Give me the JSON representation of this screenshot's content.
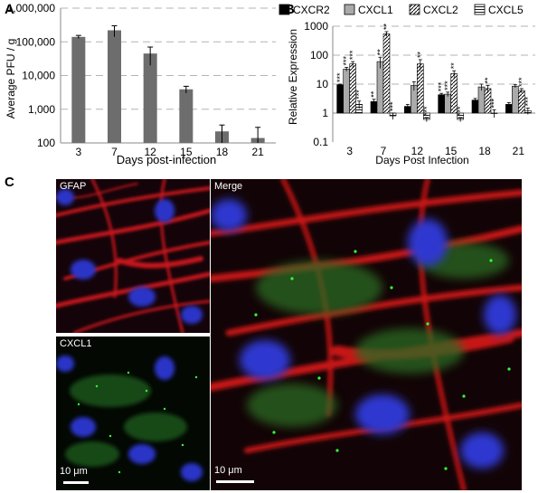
{
  "panels": {
    "a": {
      "letter": "A"
    },
    "b": {
      "letter": "B"
    },
    "c": {
      "letter": "C"
    }
  },
  "chart_data": [
    {
      "type": "bar",
      "panel": "A",
      "categories": [
        "3",
        "7",
        "12",
        "15",
        "18",
        "21"
      ],
      "values": [
        140000,
        220000,
        45000,
        3900,
        220,
        140
      ],
      "errors": [
        15000,
        80000,
        25000,
        900,
        120,
        150
      ],
      "xlabel": "Days post-infection",
      "ylabel": "Average PFU / g",
      "yscale": "log",
      "ylim": [
        100,
        1000000
      ],
      "yticks": [
        "100",
        "1,000",
        "10,000",
        "100,000",
        "1,000,000"
      ],
      "grid": "dashed horizontal",
      "bar_color": "#6d6d6d"
    },
    {
      "type": "bar",
      "panel": "B",
      "categories": [
        "3",
        "7",
        "12",
        "15",
        "18",
        "21"
      ],
      "series": [
        {
          "name": "CXCR2",
          "values": [
            9.5,
            2.5,
            1.7,
            4.3,
            2.8,
            2.0
          ],
          "errors": [
            0.5,
            0.5,
            0.3,
            0.5,
            0.4,
            0.3
          ],
          "stars": [
            "***",
            "**",
            "",
            "***",
            "",
            ""
          ],
          "fill": "solid"
        },
        {
          "name": "CXCL1",
          "values": [
            33,
            60,
            9,
            4.5,
            8,
            8.5
          ],
          "errors": [
            5,
            25,
            3,
            0.8,
            2,
            1
          ],
          "stars": [
            "***",
            "**",
            "",
            "***",
            "",
            ""
          ],
          "fill": "gray"
        },
        {
          "name": "CXCL2",
          "values": [
            50,
            550,
            50,
            23,
            7,
            6
          ],
          "errors": [
            10,
            100,
            20,
            6,
            2,
            1
          ],
          "stars": [
            "***",
            "**",
            "**",
            "**",
            "**",
            "***"
          ],
          "fill": "diagonal"
        },
        {
          "name": "CXCL5",
          "values": [
            2.0,
            0.8,
            0.6,
            0.6,
            1.0,
            1.2
          ],
          "errors": [
            0.6,
            0.2,
            0.1,
            0.1,
            0.3,
            0.3
          ],
          "stars": [
            "***",
            "***",
            "***",
            "***",
            "***",
            "***"
          ],
          "fill": "horizontal"
        }
      ],
      "xlabel": "Days Post Infection",
      "ylabel": "Relative Expression",
      "yscale": "log",
      "ylim": [
        0.1,
        1000
      ],
      "yticks": [
        "0.1",
        "1",
        "10",
        "100",
        "1000"
      ],
      "legend": "top",
      "grid": "dashed horizontal"
    }
  ],
  "micrographs": {
    "gfap": {
      "label": "GFAP"
    },
    "cxcl1": {
      "label": "CXCL1",
      "scale": "10 μm"
    },
    "merge": {
      "label": "Merge",
      "scale": "10 μm"
    }
  }
}
